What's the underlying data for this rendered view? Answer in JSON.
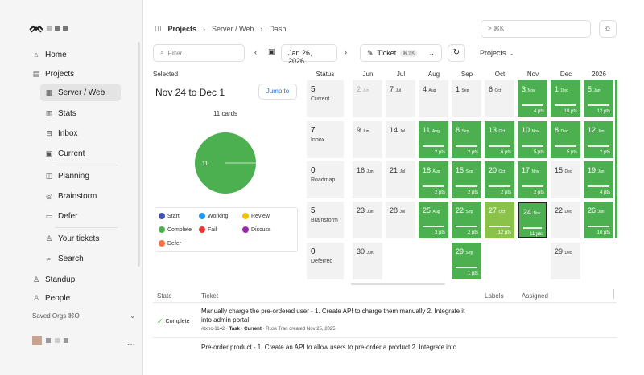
{
  "sidebar": {
    "nav": [
      {
        "label": "Home",
        "icon": "home-icon"
      },
      {
        "label": "Projects",
        "icon": "projects-icon"
      },
      {
        "label": "Server / Web",
        "icon": "board-icon"
      },
      {
        "label": "Stats",
        "icon": "stats-icon"
      },
      {
        "label": "Inbox",
        "icon": "inbox-icon"
      },
      {
        "label": "Current",
        "icon": "calendar-icon"
      },
      {
        "label": "Planning",
        "icon": "map-icon"
      },
      {
        "label": "Brainstorm",
        "icon": "lightbulb-icon"
      },
      {
        "label": "Defer",
        "icon": "archive-icon"
      },
      {
        "label": "Your tickets",
        "icon": "user-icon"
      },
      {
        "label": "Search",
        "icon": "search-icon"
      },
      {
        "label": "Standup",
        "icon": "person-icon"
      },
      {
        "label": "People",
        "icon": "people-icon"
      }
    ],
    "saved_orgs": "Saved Orgs  ⌘O",
    "more": "···"
  },
  "header": {
    "crumbs": [
      "Projects",
      "Server / Web",
      "Dash"
    ],
    "cmd_placeholder": "> ⌘K"
  },
  "toolbar": {
    "filter_placeholder": "Filter...",
    "date": "Jan 26, 2026",
    "ticket_label": "Ticket",
    "ticket_shortcut": "⌘⇧K",
    "projects_label": "Projects"
  },
  "selected": {
    "label": "Selected",
    "range": "Nov 24 to Dec 1",
    "jump": "Jump to",
    "cards": "11 cards",
    "pie_value": "11",
    "legend": [
      "Start",
      "Working",
      "Review",
      "Complete",
      "Fail",
      "Discuss",
      "Defer"
    ]
  },
  "timeline": {
    "status_header": "Status",
    "months": [
      "Jun",
      "Jul",
      "Aug",
      "Sep",
      "Oct",
      "Nov",
      "Dec",
      "2026"
    ],
    "rows": [
      {
        "count": "5",
        "label": "Current",
        "cells": [
          {
            "d": "2",
            "m": "Jun",
            "s": "muted"
          },
          {
            "d": "7",
            "m": "Jul",
            "s": ""
          },
          {
            "d": "4",
            "m": "Aug",
            "s": ""
          },
          {
            "d": "1",
            "m": "Sep",
            "s": ""
          },
          {
            "d": "6",
            "m": "Oct",
            "s": ""
          },
          {
            "d": "3",
            "m": "Nov",
            "s": "g",
            "p": "4 pts"
          },
          {
            "d": "1",
            "m": "Dec",
            "s": "g",
            "p": "18 pts"
          },
          {
            "d": "5",
            "m": "Jan",
            "s": "g",
            "p": "12 pts"
          }
        ]
      },
      {
        "count": "7",
        "label": "Inbox",
        "cells": [
          {
            "d": "9",
            "m": "Jun",
            "s": ""
          },
          {
            "d": "14",
            "m": "Jul",
            "s": ""
          },
          {
            "d": "11",
            "m": "Aug",
            "s": "g",
            "p": "2 pts"
          },
          {
            "d": "8",
            "m": "Sep",
            "s": "g",
            "p": "2 pts"
          },
          {
            "d": "13",
            "m": "Oct",
            "s": "g",
            "p": "6 pts"
          },
          {
            "d": "10",
            "m": "Nov",
            "s": "g",
            "p": "5 pts"
          },
          {
            "d": "8",
            "m": "Dec",
            "s": "g",
            "p": "5 pts"
          },
          {
            "d": "12",
            "m": "Jan",
            "s": "g",
            "p": "2 pts"
          }
        ]
      },
      {
        "count": "0",
        "label": "Roadmap",
        "cells": [
          {
            "d": "16",
            "m": "Jun",
            "s": ""
          },
          {
            "d": "21",
            "m": "Jul",
            "s": ""
          },
          {
            "d": "18",
            "m": "Aug",
            "s": "g",
            "p": "2 pts"
          },
          {
            "d": "15",
            "m": "Sep",
            "s": "g",
            "p": "2 pts"
          },
          {
            "d": "20",
            "m": "Oct",
            "s": "g",
            "p": "2 pts"
          },
          {
            "d": "17",
            "m": "Nov",
            "s": "g",
            "p": "2 pts"
          },
          {
            "d": "15",
            "m": "Dec",
            "s": ""
          },
          {
            "d": "19",
            "m": "Jan",
            "s": "g",
            "p": "4 pts"
          }
        ]
      },
      {
        "count": "5",
        "label": "Brainstorm",
        "cells": [
          {
            "d": "23",
            "m": "Jun",
            "s": ""
          },
          {
            "d": "28",
            "m": "Jul",
            "s": ""
          },
          {
            "d": "25",
            "m": "Aug",
            "s": "g",
            "p": "3 pts"
          },
          {
            "d": "22",
            "m": "Sep",
            "s": "g",
            "p": "2 pts"
          },
          {
            "d": "27",
            "m": "Oct",
            "s": "lg2",
            "p": "12 pts"
          },
          {
            "d": "24",
            "m": "Nov",
            "s": "sel",
            "p": "11 pts"
          },
          {
            "d": "22",
            "m": "Dec",
            "s": ""
          },
          {
            "d": "26",
            "m": "Jan",
            "s": "g",
            "p": "10 pts"
          }
        ]
      },
      {
        "count": "0",
        "label": "Deferred",
        "cells": [
          {
            "d": "30",
            "m": "Jun",
            "s": ""
          },
          null,
          null,
          {
            "d": "29",
            "m": "Sep",
            "s": "g",
            "p": "1 pts"
          },
          null,
          null,
          {
            "d": "29",
            "m": "Dec",
            "s": ""
          },
          null
        ]
      }
    ]
  },
  "table": {
    "headers": [
      "State",
      "Ticket",
      "Labels",
      "Assigned"
    ],
    "rows": [
      {
        "state": "Complete",
        "title": "Manually charge the pre-ordered user - 1. Create API to charge them manually 2. Integrate it into admin portal",
        "id": "#txnc-1142",
        "type": "Task",
        "col": "Current",
        "creator": "Russ Tran created Nov 25, 2025"
      },
      {
        "state": "",
        "title": "Pre-order product - 1. Create an API to allow users to pre-order a product 2. Integrate into"
      }
    ]
  },
  "colors": {
    "green": "#4caf50",
    "lightgreen": "#8bc34a",
    "accent": "#2a6fdb"
  }
}
